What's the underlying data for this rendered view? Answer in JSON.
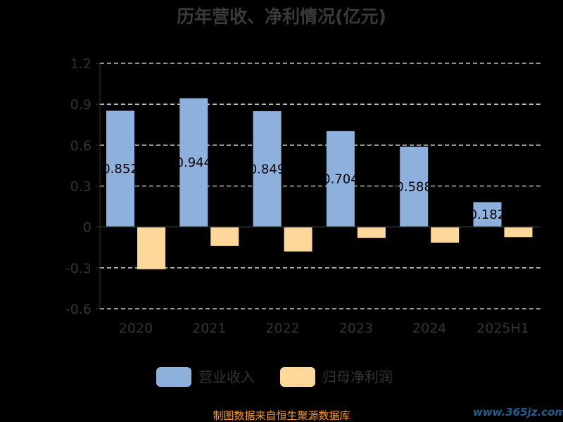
{
  "chart_data": {
    "type": "bar",
    "title": "历年营收、净利情况(亿元)",
    "categories": [
      "2020",
      "2021",
      "2022",
      "2023",
      "2024",
      "2025H1"
    ],
    "series": [
      {
        "name": "营业收入",
        "values": [
          0.852,
          0.944,
          0.849,
          0.704,
          0.588,
          0.182
        ]
      },
      {
        "name": "归母净利润",
        "values": [
          -0.31,
          -0.14,
          -0.18,
          -0.08,
          -0.115,
          -0.075
        ]
      }
    ],
    "value_labels": [
      "0.852",
      "0.944",
      "0.849",
      "0.704",
      "0.588",
      "0.182"
    ],
    "yticks": [
      "1.2",
      "0.9",
      "0.6",
      "0.3",
      "0",
      "-0.3",
      "-0.6"
    ],
    "ylim": [
      -0.6,
      1.2
    ],
    "grid": true,
    "legend_position": "bottom",
    "colors": {
      "revenue": "#8eb0dd",
      "profit": "#fed79b"
    }
  },
  "footer": {
    "source": "制图数据来自恒生聚源数据库",
    "watermark": "www.365jz.com"
  }
}
